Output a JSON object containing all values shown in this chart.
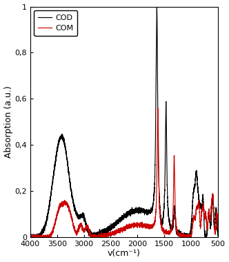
{
  "title": "",
  "xlabel": "v(cm⁻¹)",
  "ylabel": "Absorption (a.u.)",
  "xlim": [
    4000,
    500
  ],
  "ylim": [
    0,
    1.0
  ],
  "yticks": [
    0,
    0.2,
    0.4,
    0.6,
    0.8,
    1.0
  ],
  "xticks": [
    4000,
    3500,
    3000,
    2500,
    2000,
    1500,
    1000,
    500
  ],
  "cod_color": "#000000",
  "com_color": "#cc0000",
  "legend_entries": [
    "COD",
    "COM"
  ],
  "background_color": "#ffffff"
}
